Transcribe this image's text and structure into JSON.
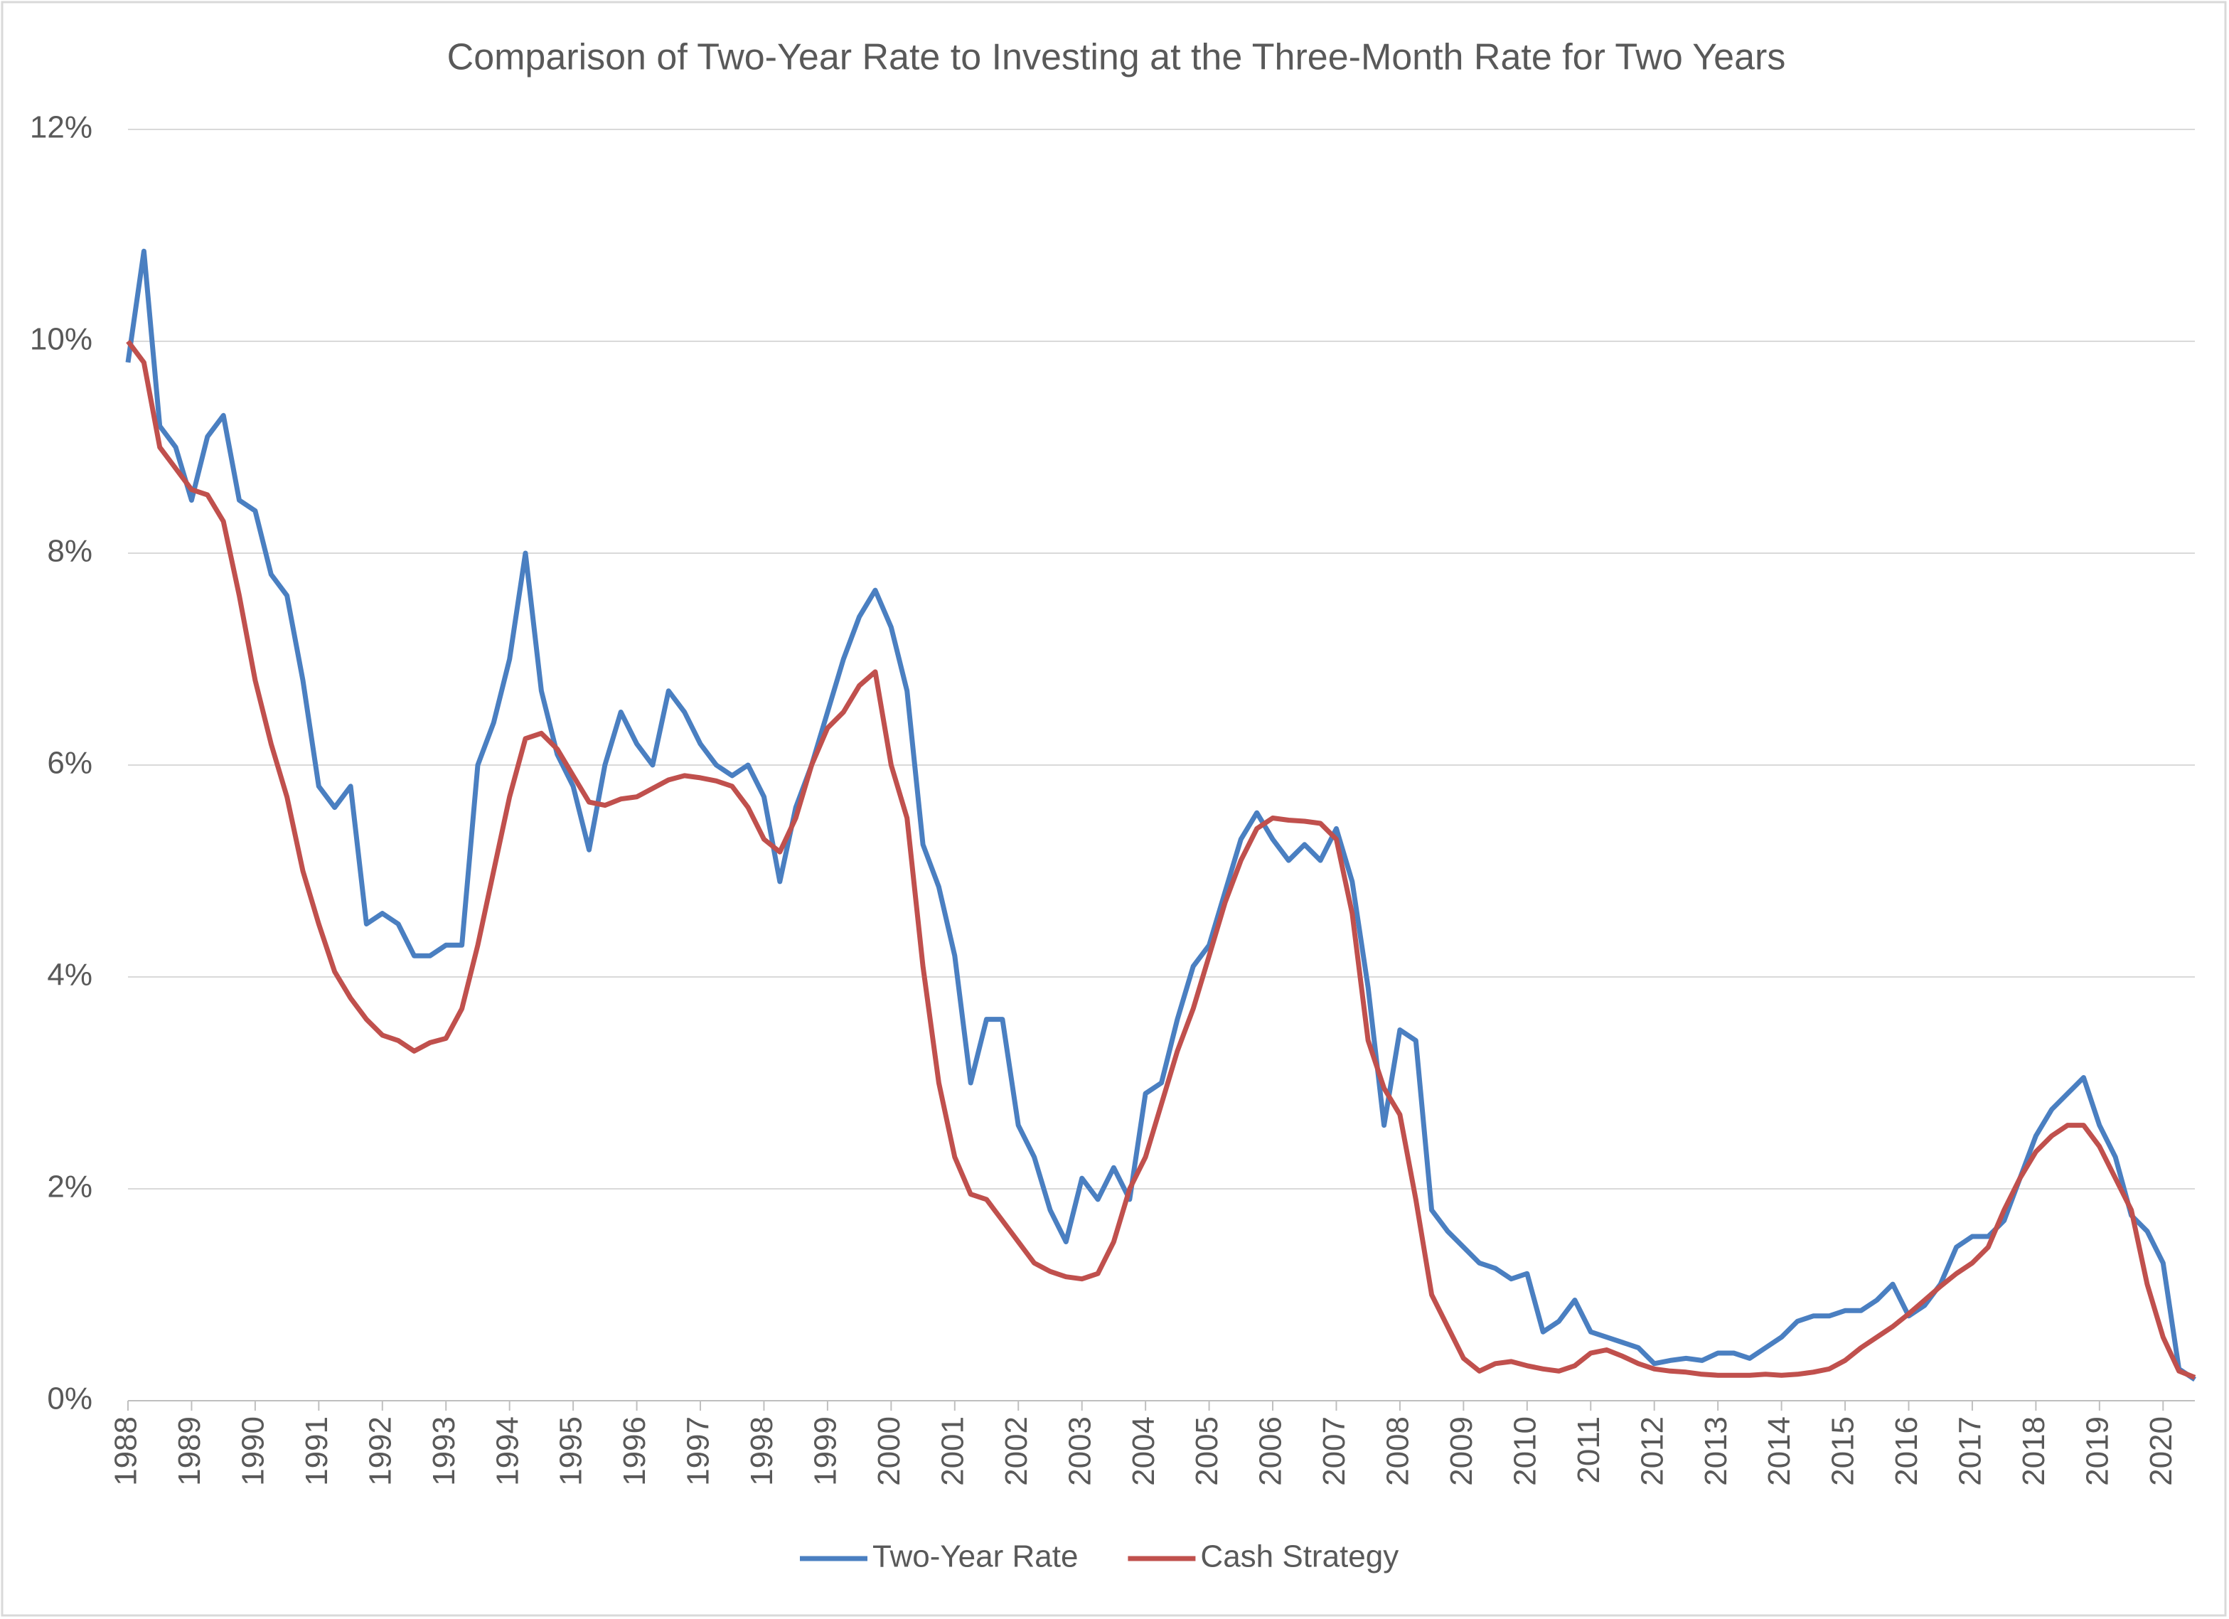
{
  "chart_data": {
    "type": "line",
    "title": "Comparison of Two-Year Rate to Investing at the Three-Month Rate for Two Years",
    "x": [
      1988,
      1988.25,
      1988.5,
      1988.75,
      1989,
      1989.25,
      1989.5,
      1989.75,
      1990,
      1990.25,
      1990.5,
      1990.75,
      1991,
      1991.25,
      1991.5,
      1991.75,
      1992,
      1992.25,
      1992.5,
      1992.75,
      1993,
      1993.25,
      1993.5,
      1993.75,
      1994,
      1994.25,
      1994.5,
      1994.75,
      1995,
      1995.25,
      1995.5,
      1995.75,
      1996,
      1996.25,
      1996.5,
      1996.75,
      1997,
      1997.25,
      1997.5,
      1997.75,
      1998,
      1998.25,
      1998.5,
      1998.75,
      1999,
      1999.25,
      1999.5,
      1999.75,
      2000,
      2000.25,
      2000.5,
      2000.75,
      2001,
      2001.25,
      2001.5,
      2001.75,
      2002,
      2002.25,
      2002.5,
      2002.75,
      2003,
      2003.25,
      2003.5,
      2003.75,
      2004,
      2004.25,
      2004.5,
      2004.75,
      2005,
      2005.25,
      2005.5,
      2005.75,
      2006,
      2006.25,
      2006.5,
      2006.75,
      2007,
      2007.25,
      2007.5,
      2007.75,
      2008,
      2008.25,
      2008.5,
      2008.75,
      2009,
      2009.25,
      2009.5,
      2009.75,
      2010,
      2010.25,
      2010.5,
      2010.75,
      2011,
      2011.25,
      2011.5,
      2011.75,
      2012,
      2012.25,
      2012.5,
      2012.75,
      2013,
      2013.25,
      2013.5,
      2013.75,
      2014,
      2014.25,
      2014.5,
      2014.75,
      2015,
      2015.25,
      2015.5,
      2015.75,
      2016,
      2016.25,
      2016.5,
      2016.75,
      2017,
      2017.25,
      2017.5,
      2017.75,
      2018,
      2018.25,
      2018.5,
      2018.75,
      2019,
      2019.25,
      2019.5,
      2019.75,
      2020,
      2020.25,
      2020.5
    ],
    "series": [
      {
        "name": "Two-Year Rate",
        "color": "#4a7fc1",
        "values": [
          9.8,
          10.85,
          9.2,
          9.0,
          8.5,
          9.1,
          9.3,
          8.5,
          8.4,
          7.8,
          7.6,
          6.8,
          5.8,
          5.6,
          5.8,
          4.5,
          4.6,
          4.5,
          4.2,
          4.2,
          4.3,
          4.3,
          6.0,
          6.4,
          7.0,
          8.0,
          6.7,
          6.1,
          5.8,
          5.2,
          6.0,
          6.5,
          6.2,
          6.0,
          6.7,
          6.5,
          6.2,
          6.0,
          5.9,
          6.0,
          5.7,
          4.9,
          5.6,
          6.0,
          6.5,
          7.0,
          7.4,
          7.65,
          7.3,
          6.7,
          5.25,
          4.85,
          4.2,
          3.0,
          3.6,
          3.6,
          2.6,
          2.3,
          1.8,
          1.5,
          2.1,
          1.9,
          2.2,
          1.9,
          2.9,
          3.0,
          3.6,
          4.1,
          4.3,
          4.8,
          5.3,
          5.55,
          5.3,
          5.1,
          5.25,
          5.1,
          5.4,
          4.9,
          3.9,
          2.6,
          3.5,
          3.4,
          1.8,
          1.6,
          1.45,
          1.3,
          1.25,
          1.15,
          1.2,
          0.65,
          0.75,
          0.95,
          0.65,
          0.6,
          0.55,
          0.5,
          0.35,
          0.38,
          0.4,
          0.38,
          0.45,
          0.45,
          0.4,
          0.5,
          0.6,
          0.75,
          0.8,
          0.8,
          0.85,
          0.85,
          0.95,
          1.1,
          0.8,
          0.9,
          1.1,
          1.45,
          1.55,
          1.55,
          1.7,
          2.1,
          2.5,
          2.75,
          2.9,
          3.05,
          2.6,
          2.3,
          1.75,
          1.6,
          1.3,
          0.3,
          0.2
        ]
      },
      {
        "name": "Cash Strategy",
        "color": "#c0504d",
        "values": [
          10.0,
          9.8,
          9.0,
          8.8,
          8.6,
          8.55,
          8.3,
          7.6,
          6.8,
          6.2,
          5.7,
          5.0,
          4.5,
          4.05,
          3.8,
          3.6,
          3.45,
          3.4,
          3.3,
          3.38,
          3.42,
          3.7,
          4.3,
          5.0,
          5.7,
          6.25,
          6.3,
          6.15,
          5.9,
          5.65,
          5.62,
          5.68,
          5.7,
          5.78,
          5.86,
          5.9,
          5.88,
          5.85,
          5.8,
          5.6,
          5.3,
          5.18,
          5.5,
          6.0,
          6.35,
          6.5,
          6.75,
          6.88,
          6.0,
          5.5,
          4.1,
          3.0,
          2.3,
          1.95,
          1.9,
          1.7,
          1.5,
          1.3,
          1.22,
          1.17,
          1.15,
          1.2,
          1.5,
          2.0,
          2.3,
          2.8,
          3.3,
          3.7,
          4.2,
          4.7,
          5.1,
          5.4,
          5.5,
          5.48,
          5.47,
          5.45,
          5.3,
          4.6,
          3.4,
          2.95,
          2.7,
          1.9,
          1.0,
          0.7,
          0.4,
          0.28,
          0.35,
          0.37,
          0.33,
          0.3,
          0.28,
          0.33,
          0.45,
          0.48,
          0.42,
          0.35,
          0.3,
          0.28,
          0.27,
          0.25,
          0.24,
          0.24,
          0.24,
          0.25,
          0.24,
          0.25,
          0.27,
          0.3,
          0.38,
          0.5,
          0.6,
          0.7,
          0.82,
          0.95,
          1.08,
          1.2,
          1.3,
          1.45,
          1.8,
          2.1,
          2.35,
          2.5,
          2.6,
          2.6,
          2.4,
          2.1,
          1.8,
          1.1,
          0.6,
          0.28,
          0.22
        ]
      }
    ],
    "xlim": [
      1988,
      2020.5
    ],
    "xticks": [
      1988,
      1989,
      1990,
      1991,
      1992,
      1993,
      1994,
      1995,
      1996,
      1997,
      1998,
      1999,
      2000,
      2001,
      2002,
      2003,
      2004,
      2005,
      2006,
      2007,
      2008,
      2009,
      2010,
      2011,
      2012,
      2013,
      2014,
      2015,
      2016,
      2017,
      2018,
      2019,
      2020
    ],
    "ylim": [
      0,
      12
    ],
    "yticks": [
      {
        "value": 0,
        "label": "0%"
      },
      {
        "value": 2,
        "label": "2%"
      },
      {
        "value": 4,
        "label": "4%"
      },
      {
        "value": 6,
        "label": "6%"
      },
      {
        "value": 8,
        "label": "8%"
      },
      {
        "value": 10,
        "label": "10%"
      },
      {
        "value": 12,
        "label": "12%"
      }
    ],
    "grid": true
  }
}
